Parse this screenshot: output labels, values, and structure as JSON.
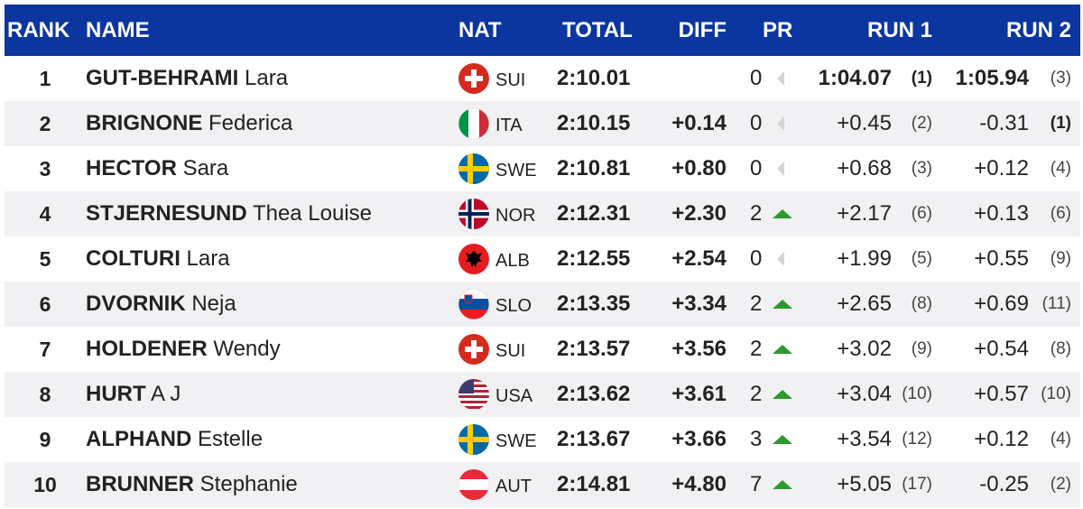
{
  "table": {
    "header": [
      "RANK",
      "NAME",
      "NAT",
      "TOTAL",
      "DIFF",
      "PR",
      "RUN 1",
      "RUN 2"
    ],
    "rows": [
      {
        "rank": "1",
        "surname": "GUT-BEHRAMI",
        "given": "Lara",
        "nat": "SUI",
        "total": "2:10.01",
        "pr": "0",
        "run1": "1:04.07",
        "run1_rank": "(1)",
        "run2": "1:05.94",
        "run2_rank": "(3)"
      },
      {
        "rank": "2",
        "surname": "BRIGNONE",
        "given": "Federica",
        "nat": "ITA",
        "total": "2:10.15",
        "diff": "+0.14",
        "pr": "0",
        "run1": "+0.45",
        "run1_rank": "(2)",
        "run2": "-0.31",
        "run2_rank": "(1)"
      },
      {
        "rank": "3",
        "surname": "HECTOR",
        "given": "Sara",
        "nat": "SWE",
        "total": "2:10.81",
        "diff": "+0.80",
        "pr": "0",
        "run1": "+0.68",
        "run1_rank": "(3)",
        "run2": "+0.12",
        "run2_rank": "(4)"
      },
      {
        "rank": "4",
        "surname": "STJERNESUND",
        "given": "Thea Louise",
        "nat": "NOR",
        "total": "2:12.31",
        "diff": "+2.30",
        "pr": "2",
        "run1": "+2.17",
        "run1_rank": "(6)",
        "run2": "+0.13",
        "run2_rank": "(6)"
      },
      {
        "rank": "5",
        "surname": "COLTURI",
        "given": "Lara",
        "nat": "ALB",
        "total": "2:12.55",
        "diff": "+2.54",
        "pr": "0",
        "run1": "+1.99",
        "run1_rank": "(5)",
        "run2": "+0.55",
        "run2_rank": "(9)"
      },
      {
        "rank": "6",
        "surname": "DVORNIK",
        "given": "Neja",
        "nat": "SLO",
        "total": "2:13.35",
        "diff": "+3.34",
        "pr": "2",
        "run1": "+2.65",
        "run1_rank": "(8)",
        "run2": "+0.69",
        "run2_rank": "(11)"
      },
      {
        "rank": "7",
        "surname": "HOLDENER",
        "given": "Wendy",
        "nat": "SUI",
        "total": "2:13.57",
        "diff": "+3.56",
        "pr": "2",
        "run1": "+3.02",
        "run1_rank": "(9)",
        "run2": "+0.54",
        "run2_rank": "(8)"
      },
      {
        "rank": "8",
        "surname": "HURT",
        "given": "A J",
        "nat": "USA",
        "total": "2:13.62",
        "diff": "+3.61",
        "pr": "2",
        "run1": "+3.04",
        "run1_rank": "(10)",
        "run2": "+0.57",
        "run2_rank": "(10)"
      },
      {
        "rank": "9",
        "surname": "ALPHAND",
        "given": "Estelle",
        "nat": "SWE",
        "total": "2:13.67",
        "diff": "+3.66",
        "pr": "3",
        "run1": "+3.54",
        "run1_rank": "(12)",
        "run2": "+0.12",
        "run2_rank": "(4)"
      },
      {
        "rank": "10",
        "surname": "BRUNNER",
        "given": "Stephanie",
        "nat": "AUT",
        "total": "2:14.81",
        "diff": "+4.80",
        "pr": "7",
        "run1": "+5.05",
        "run1_rank": "(17)",
        "run2": "-0.25",
        "run2_rank": "(2)"
      }
    ]
  }
}
